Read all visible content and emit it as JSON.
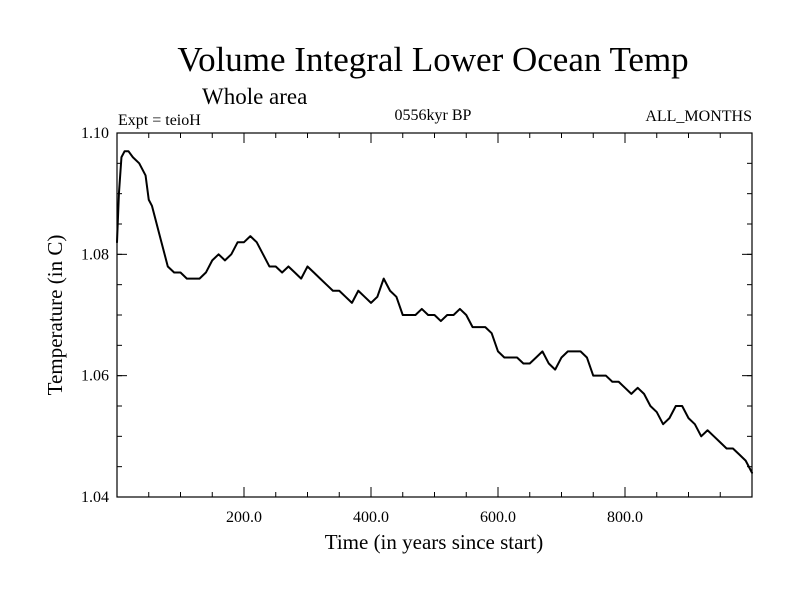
{
  "chart_data": {
    "type": "line",
    "title": "Volume Integral Lower Ocean Temp",
    "subtitle": "Whole area",
    "annotations": {
      "experiment": "Expt = teioH",
      "period": "0556kyr BP",
      "months": "ALL_MONTHS"
    },
    "xlabel": "Time (in years since start)",
    "ylabel": "Temperature (in C)",
    "xlim": [
      0,
      1000
    ],
    "ylim": [
      1.04,
      1.1
    ],
    "x_ticks": [
      200,
      400,
      600,
      800
    ],
    "x_tick_labels": [
      "200.0",
      "400.0",
      "600.0",
      "800.0"
    ],
    "y_ticks": [
      1.04,
      1.06,
      1.08,
      1.1
    ],
    "y_tick_labels": [
      "1.04",
      "1.06",
      "1.08",
      "1.10"
    ],
    "y_minor_step": 0.005,
    "x_minor_step": 50,
    "series": [
      {
        "name": "Volume Integral Lower Ocean Temp",
        "color": "#000000",
        "x": [
          0,
          3,
          7,
          12,
          18,
          25,
          35,
          45,
          50,
          55,
          60,
          65,
          70,
          75,
          80,
          90,
          100,
          110,
          120,
          130,
          140,
          150,
          160,
          170,
          180,
          190,
          200,
          210,
          220,
          230,
          240,
          250,
          260,
          270,
          280,
          290,
          300,
          310,
          320,
          330,
          340,
          350,
          360,
          370,
          380,
          390,
          400,
          410,
          420,
          430,
          440,
          450,
          460,
          470,
          480,
          490,
          500,
          510,
          520,
          530,
          540,
          550,
          560,
          570,
          580,
          590,
          600,
          610,
          620,
          630,
          640,
          650,
          660,
          670,
          680,
          690,
          700,
          710,
          720,
          730,
          740,
          750,
          760,
          770,
          780,
          790,
          800,
          810,
          820,
          830,
          840,
          850,
          860,
          870,
          880,
          890,
          900,
          910,
          920,
          930,
          940,
          950,
          960,
          970,
          980,
          990,
          1000
        ],
        "values": [
          1.082,
          1.09,
          1.096,
          1.097,
          1.097,
          1.096,
          1.095,
          1.093,
          1.089,
          1.088,
          1.086,
          1.084,
          1.082,
          1.08,
          1.078,
          1.077,
          1.077,
          1.076,
          1.076,
          1.076,
          1.077,
          1.079,
          1.08,
          1.079,
          1.08,
          1.082,
          1.082,
          1.083,
          1.082,
          1.08,
          1.078,
          1.078,
          1.077,
          1.078,
          1.077,
          1.076,
          1.078,
          1.077,
          1.076,
          1.075,
          1.074,
          1.074,
          1.073,
          1.072,
          1.074,
          1.073,
          1.072,
          1.073,
          1.076,
          1.074,
          1.073,
          1.07,
          1.07,
          1.07,
          1.071,
          1.07,
          1.07,
          1.069,
          1.07,
          1.07,
          1.071,
          1.07,
          1.068,
          1.068,
          1.068,
          1.067,
          1.064,
          1.063,
          1.063,
          1.063,
          1.062,
          1.062,
          1.063,
          1.064,
          1.062,
          1.061,
          1.063,
          1.064,
          1.064,
          1.064,
          1.063,
          1.06,
          1.06,
          1.06,
          1.059,
          1.059,
          1.058,
          1.057,
          1.058,
          1.057,
          1.055,
          1.054,
          1.052,
          1.053,
          1.055,
          1.055,
          1.053,
          1.052,
          1.05,
          1.051,
          1.05,
          1.049,
          1.048,
          1.048,
          1.047,
          1.046,
          1.044
        ]
      }
    ]
  }
}
